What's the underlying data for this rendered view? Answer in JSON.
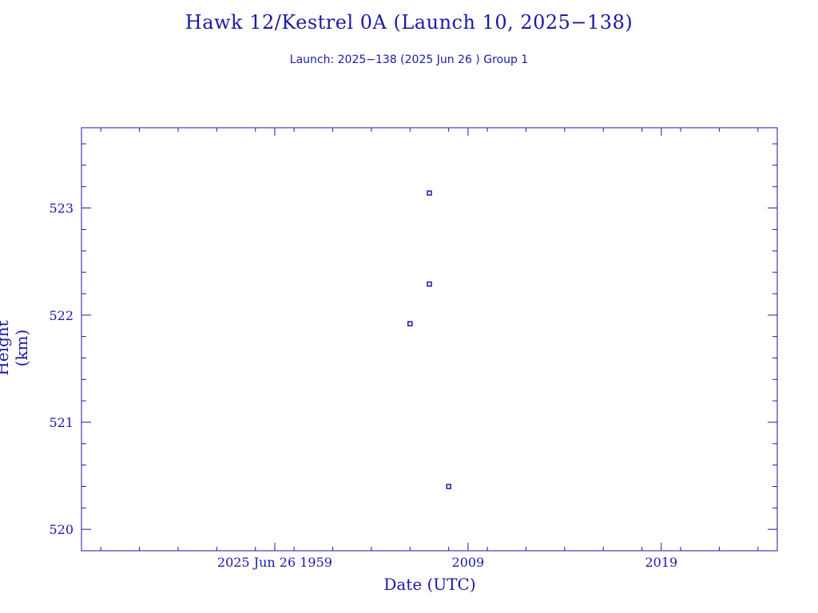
{
  "chart_data": {
    "type": "scatter",
    "title": "Hawk 12/Kestrel 0A (Launch 10, 2025−138)",
    "subtitle": "Launch: 2025−138  (2025 Jun 26 )  Group 1",
    "xlabel": "Date (UTC)",
    "ylabel": "Height (km)",
    "x_unit": "UTC time on 2025 Jun 26 (HHMM)",
    "xlim": [
      "1949",
      "2025"
    ],
    "ylim": [
      519.8,
      523.75
    ],
    "x_ticks": [
      {
        "at": "1959",
        "label": "2025 Jun 26  1959"
      },
      {
        "at": "2009",
        "label": "2009"
      },
      {
        "at": "2019",
        "label": "2019"
      }
    ],
    "y_ticks": [
      520,
      521,
      522,
      523
    ],
    "grid": false,
    "marker_color": "#1a1aa6",
    "points": [
      {
        "x": "2006",
        "y": 521.92
      },
      {
        "x": "2007",
        "y": 523.14
      },
      {
        "x": "2007",
        "y": 522.29
      },
      {
        "x": "2008",
        "y": 520.4
      }
    ]
  }
}
